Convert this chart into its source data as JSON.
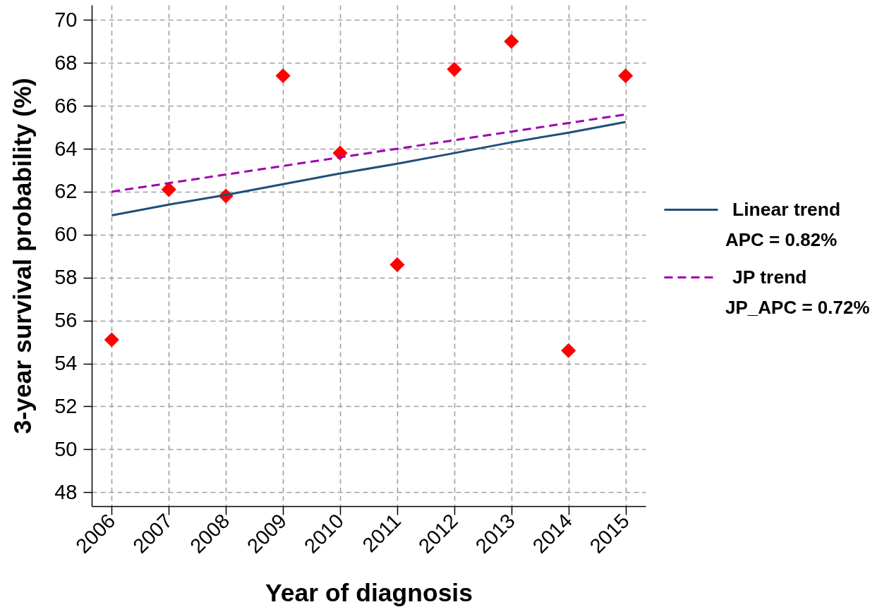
{
  "chart_data": {
    "type": "scatter",
    "xlabel": "Year of diagnosis",
    "ylabel": "3-year survival probability (%)",
    "xlim": [
      2005.65,
      2015.35
    ],
    "ylim": [
      47.35,
      70.7
    ],
    "xticks": [
      2006,
      2007,
      2008,
      2009,
      2010,
      2011,
      2012,
      2013,
      2014,
      2015
    ],
    "yticks": [
      48,
      50,
      52,
      54,
      56,
      58,
      60,
      62,
      64,
      66,
      68,
      70
    ],
    "grid": true,
    "legend": "right",
    "x": [
      2006,
      2007,
      2008,
      2009,
      2010,
      2011,
      2012,
      2013,
      2014,
      2015
    ],
    "series": [
      {
        "color": "#ff0000",
        "marker": "diamond",
        "values": [
          55.1,
          62.1,
          61.8,
          67.4,
          63.8,
          58.6,
          67.7,
          69.0,
          54.6,
          67.4
        ]
      },
      {
        "type": "line",
        "name": "Linear trend",
        "color": "#1f4e79",
        "line_style": "solid",
        "marker": "none",
        "values": [
          60.9,
          61.4,
          61.85,
          62.35,
          62.85,
          63.3,
          63.8,
          64.3,
          64.75,
          65.25
        ]
      },
      {
        "type": "line",
        "name": "JP trend",
        "color": "#a000b0",
        "line_style": "dashed",
        "marker": "none",
        "values": [
          62.0,
          62.4,
          62.8,
          63.2,
          63.6,
          64.0,
          64.4,
          64.8,
          65.2,
          65.6
        ]
      }
    ],
    "annotations": [
      "APC = 0.82%",
      "JP_APC = 0.72%"
    ]
  }
}
